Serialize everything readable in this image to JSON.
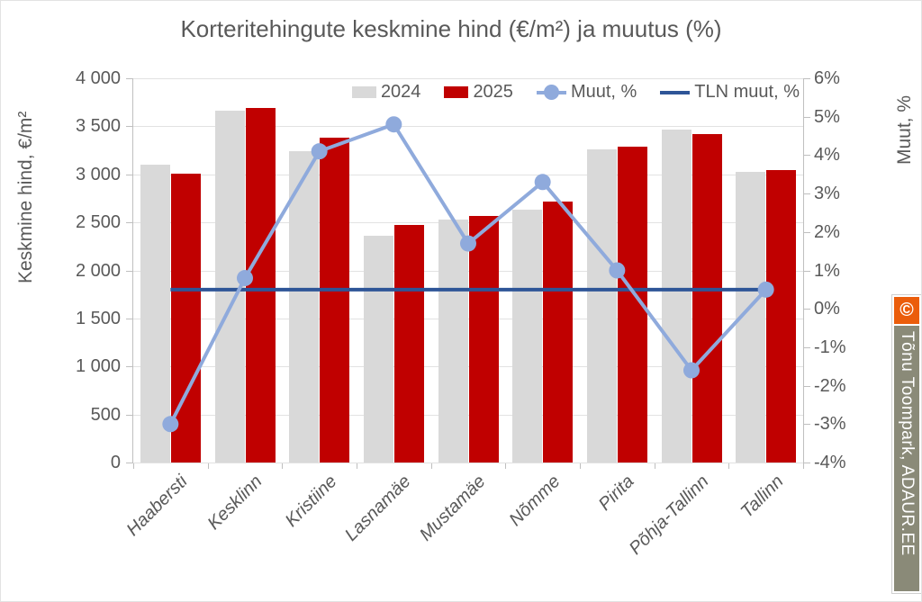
{
  "title": "Korteritehingute keskmine hind (€/m²) ja muutus (%)",
  "colors": {
    "bar_2024": "#D9D9D9",
    "bar_2025": "#C00000",
    "muut_line": "#8FAADC",
    "tln_line": "#2E5597",
    "text": "#595959",
    "gridline": "#E2E2E2",
    "axis_line": "#BFBFBF"
  },
  "chart_data": {
    "type": "combo bar+line, dual axis",
    "categories": [
      "Haabersti",
      "Kesklinn",
      "Kristiine",
      "Lasnamäe",
      "Mustamäe",
      "Nõmme",
      "Pirita",
      "Põhja-Tallinn",
      "Tallinn"
    ],
    "bar_series": [
      {
        "name": "2024",
        "axis": "left",
        "color": "#D9D9D9",
        "values": [
          3100,
          3660,
          3240,
          2360,
          2530,
          2630,
          3260,
          3470,
          3030
        ]
      },
      {
        "name": "2025",
        "axis": "left",
        "color": "#C00000",
        "values": [
          3005,
          3690,
          3380,
          2470,
          2570,
          2720,
          3290,
          3415,
          3045
        ]
      }
    ],
    "line_series": [
      {
        "name": "Muut, %",
        "axis": "right",
        "color": "#8FAADC",
        "marker": true,
        "values": [
          -3.0,
          0.8,
          4.1,
          4.8,
          1.7,
          3.3,
          1.0,
          -1.6,
          0.5
        ]
      },
      {
        "name": "TLN muut, %",
        "axis": "right",
        "color": "#2E5597",
        "marker": false,
        "values": [
          0.5,
          0.5,
          0.5,
          0.5,
          0.5,
          0.5,
          0.5,
          0.5,
          0.5
        ]
      }
    ],
    "left_axis": {
      "title": "Keskmine hind, €/m²",
      "min": 0,
      "max": 4000,
      "step": 500,
      "tick_labels": [
        "4 000",
        "3 500",
        "3 000",
        "2 500",
        "2 000",
        "1 500",
        "1 000",
        "500",
        "0"
      ]
    },
    "right_axis": {
      "title": "Muut, %",
      "min": -4,
      "max": 6,
      "step": 1,
      "tick_labels": [
        "6%",
        "5%",
        "4%",
        "3%",
        "2%",
        "1%",
        "0%",
        "-1%",
        "-2%",
        "-3%",
        "-4%"
      ]
    },
    "legend": {
      "position": "top-right inside plot",
      "items": [
        {
          "label": "2024",
          "swatch": "bar",
          "color": "#D9D9D9"
        },
        {
          "label": "2025",
          "swatch": "bar",
          "color": "#C00000"
        },
        {
          "label": "Muut, %",
          "swatch": "line-marker",
          "color": "#8FAADC"
        },
        {
          "label": "TLN muut, %",
          "swatch": "line",
          "color": "#2E5597"
        }
      ]
    },
    "grid": "horizontal gridlines at left-axis 500 steps"
  },
  "watermark": {
    "copyright_symbol": "©",
    "text": "Tõnu Toompark, ADAUR.EE",
    "badge_color": "#EB5D0B",
    "strip_color": "#8A8A78"
  }
}
